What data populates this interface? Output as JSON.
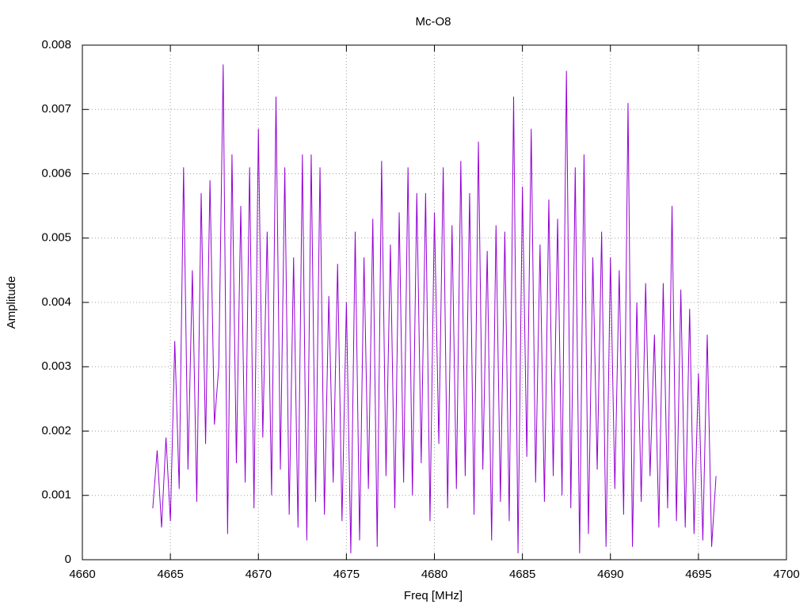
{
  "chart_data": {
    "type": "line",
    "title": "Mc-O8",
    "x_label": "Freq [MHz]",
    "y_label": "Amplitude",
    "color": "#9400d3",
    "grid": true,
    "xlim": [
      4660,
      4700
    ],
    "xticks": [
      4660,
      4665,
      4670,
      4675,
      4680,
      4685,
      4690,
      4695,
      4700
    ],
    "ylim": [
      0,
      0.008
    ],
    "yticks": [
      0,
      0.001,
      0.002,
      0.003,
      0.004,
      0.005,
      0.006,
      0.007,
      0.008
    ],
    "x": [
      4664,
      4664.25,
      4664.5,
      4664.75,
      4665,
      4665.25,
      4665.5,
      4665.75,
      4666,
      4666.25,
      4666.5,
      4666.75,
      4667,
      4667.25,
      4667.5,
      4667.75,
      4668,
      4668.25,
      4668.5,
      4668.75,
      4669,
      4669.25,
      4669.5,
      4669.75,
      4670,
      4670.25,
      4670.5,
      4670.75,
      4671,
      4671.25,
      4671.5,
      4671.75,
      4672,
      4672.25,
      4672.5,
      4672.75,
      4673,
      4673.25,
      4673.5,
      4673.75,
      4674,
      4674.25,
      4674.5,
      4674.75,
      4675,
      4675.25,
      4675.5,
      4675.75,
      4676,
      4676.25,
      4676.5,
      4676.75,
      4677,
      4677.25,
      4677.5,
      4677.75,
      4678,
      4678.25,
      4678.5,
      4678.75,
      4679,
      4679.25,
      4679.5,
      4679.75,
      4680,
      4680.25,
      4680.5,
      4680.75,
      4681,
      4681.25,
      4681.5,
      4681.75,
      4682,
      4682.25,
      4682.5,
      4682.75,
      4683,
      4683.25,
      4683.5,
      4683.75,
      4684,
      4684.25,
      4684.5,
      4684.75,
      4685,
      4685.25,
      4685.5,
      4685.75,
      4686,
      4686.25,
      4686.5,
      4686.75,
      4687,
      4687.25,
      4687.5,
      4687.75,
      4688,
      4688.25,
      4688.5,
      4688.75,
      4689,
      4689.25,
      4689.5,
      4689.75,
      4690,
      4690.25,
      4690.5,
      4690.75,
      4691,
      4691.25,
      4691.5,
      4691.75,
      4692,
      4692.25,
      4692.5,
      4692.75,
      4693,
      4693.25,
      4693.5,
      4693.75,
      4694,
      4694.25,
      4694.5,
      4694.75,
      4695,
      4695.25,
      4695.5,
      4695.75,
      4696
    ],
    "values": [
      0.0008,
      0.0017,
      0.0005,
      0.0019,
      0.0006,
      0.0034,
      0.0011,
      0.0061,
      0.0014,
      0.0045,
      0.0009,
      0.0057,
      0.0018,
      0.0059,
      0.0021,
      0.003,
      0.0077,
      0.0004,
      0.0063,
      0.0015,
      0.0055,
      0.0012,
      0.0061,
      0.0008,
      0.0067,
      0.0019,
      0.0051,
      0.001,
      0.0072,
      0.0014,
      0.0061,
      0.0007,
      0.0047,
      0.0005,
      0.0063,
      0.0003,
      0.0063,
      0.0009,
      0.0061,
      0.0007,
      0.0041,
      0.0012,
      0.0046,
      0.0006,
      0.004,
      0.0001,
      0.0051,
      0.0003,
      0.0047,
      0.0011,
      0.0053,
      0.0002,
      0.0062,
      0.0013,
      0.0049,
      0.0008,
      0.0054,
      0.0012,
      0.0061,
      0.001,
      0.0057,
      0.0015,
      0.0057,
      0.0006,
      0.0054,
      0.0018,
      0.0061,
      0.0008,
      0.0052,
      0.0011,
      0.0062,
      0.0013,
      0.0057,
      0.0007,
      0.0065,
      0.0014,
      0.0048,
      0.0003,
      0.0052,
      0.0009,
      0.0051,
      0.0006,
      0.0072,
      0.0001,
      0.0058,
      0.0016,
      0.0067,
      0.0012,
      0.0049,
      0.0009,
      0.0056,
      0.0013,
      0.0053,
      0.001,
      0.0076,
      0.0008,
      0.0061,
      0.0001,
      0.0063,
      0.0004,
      0.0047,
      0.0014,
      0.0051,
      0.0002,
      0.0047,
      0.0011,
      0.0045,
      0.0007,
      0.0071,
      0.0002,
      0.004,
      0.0009,
      0.0043,
      0.0013,
      0.0035,
      0.0005,
      0.0043,
      0.0008,
      0.0055,
      0.0006,
      0.0042,
      0.0005,
      0.0039,
      0.0004,
      0.0029,
      0.0003,
      0.0035,
      0.0002,
      0.0013
    ]
  }
}
